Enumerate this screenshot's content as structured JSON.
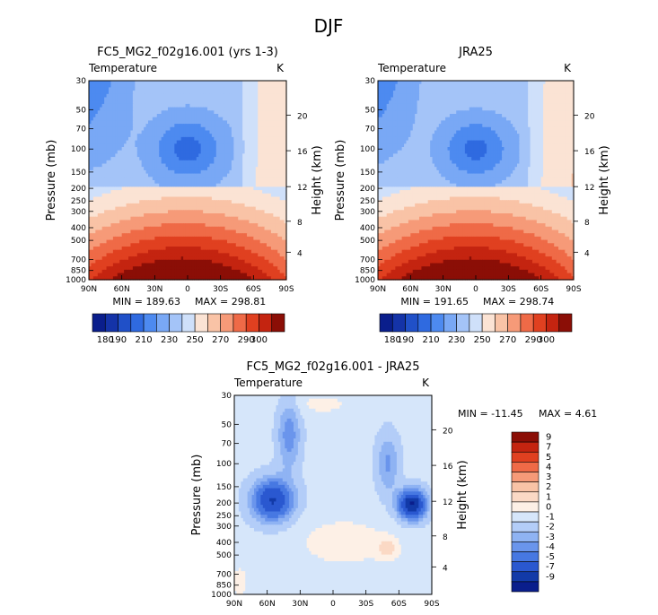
{
  "figure_title": "DJF",
  "chart_data": [
    {
      "type": "heatmap",
      "title": "FC5_MG2_f02g16.001 (yrs 1-3)",
      "subtitle_left": "Temperature",
      "units": "K",
      "xlabel": "",
      "ylabel": "Pressure (mb)",
      "ylabel_right": "Height (km)",
      "x_ticks": [
        "90N",
        "60N",
        "30N",
        "0",
        "30S",
        "60S",
        "90S"
      ],
      "y_ticks": [
        "30",
        "50",
        "70",
        "100",
        "150",
        "200",
        "250",
        "300",
        "400",
        "500",
        "700",
        "850",
        "1000"
      ],
      "y_ticks_right": [
        "20",
        "16",
        "12",
        "8",
        "4"
      ],
      "min_label": "MIN = 189.63",
      "max_label": "MAX = 298.81",
      "levels": [
        "180",
        "190",
        "200",
        "210",
        "220",
        "230",
        "240",
        "250",
        "260",
        "270",
        "280",
        "290",
        "300"
      ],
      "colorbar_labels": [
        "180",
        "190",
        "210",
        "230",
        "250",
        "270",
        "290",
        "300"
      ],
      "colors": [
        "#0a1e8c",
        "#1433a8",
        "#2050c8",
        "#2f6ae0",
        "#4d8af0",
        "#79a8f5",
        "#a4c4f8",
        "#cfe0fa",
        "#fbe3d4",
        "#f9c3a6",
        "#f69a78",
        "#ef6a47",
        "#e04020",
        "#c42410",
        "#8b0e06"
      ]
    },
    {
      "type": "heatmap",
      "title": "JRA25",
      "subtitle_left": "Temperature",
      "units": "K",
      "xlabel": "",
      "ylabel": "Pressure (mb)",
      "ylabel_right": "Height (km)",
      "x_ticks": [
        "90N",
        "60N",
        "30N",
        "0",
        "30S",
        "60S",
        "90S"
      ],
      "y_ticks": [
        "30",
        "50",
        "70",
        "100",
        "150",
        "200",
        "250",
        "300",
        "400",
        "500",
        "700",
        "850",
        "1000"
      ],
      "y_ticks_right": [
        "20",
        "16",
        "12",
        "8",
        "4"
      ],
      "min_label": "MIN = 191.65",
      "max_label": "MAX = 298.74",
      "colorbar_labels": [
        "180",
        "190",
        "210",
        "230",
        "250",
        "270",
        "290",
        "300"
      ]
    },
    {
      "type": "heatmap",
      "title": "FC5_MG2_f02g16.001 - JRA25",
      "subtitle_left": "Temperature",
      "units": "K",
      "xlabel": "",
      "ylabel": "Pressure (mb)",
      "ylabel_right": "Height (km)",
      "x_ticks": [
        "90N",
        "60N",
        "30N",
        "0",
        "30S",
        "60S",
        "90S"
      ],
      "y_ticks": [
        "30",
        "50",
        "70",
        "100",
        "150",
        "200",
        "250",
        "300",
        "400",
        "500",
        "700",
        "850",
        "1000"
      ],
      "y_ticks_right": [
        "20",
        "16",
        "12",
        "8",
        "4"
      ],
      "min_label": "MIN = -11.45",
      "max_label": "MAX = 4.61",
      "colorbar_labels": [
        "9",
        "7",
        "5",
        "4",
        "3",
        "2",
        "1",
        "0",
        "-1",
        "-2",
        "-3",
        "-4",
        "-5",
        "-7",
        "-9"
      ],
      "colors": [
        "#8b0e06",
        "#c42410",
        "#e04020",
        "#ef6a47",
        "#f69a78",
        "#f9c3a6",
        "#fbd9c5",
        "#fdf0e6",
        "#d6e6fa",
        "#b3cdf8",
        "#8fb3f3",
        "#6a95ec",
        "#4778e2",
        "#2a58d0",
        "#123aa8",
        "#0a1e8c"
      ]
    }
  ]
}
